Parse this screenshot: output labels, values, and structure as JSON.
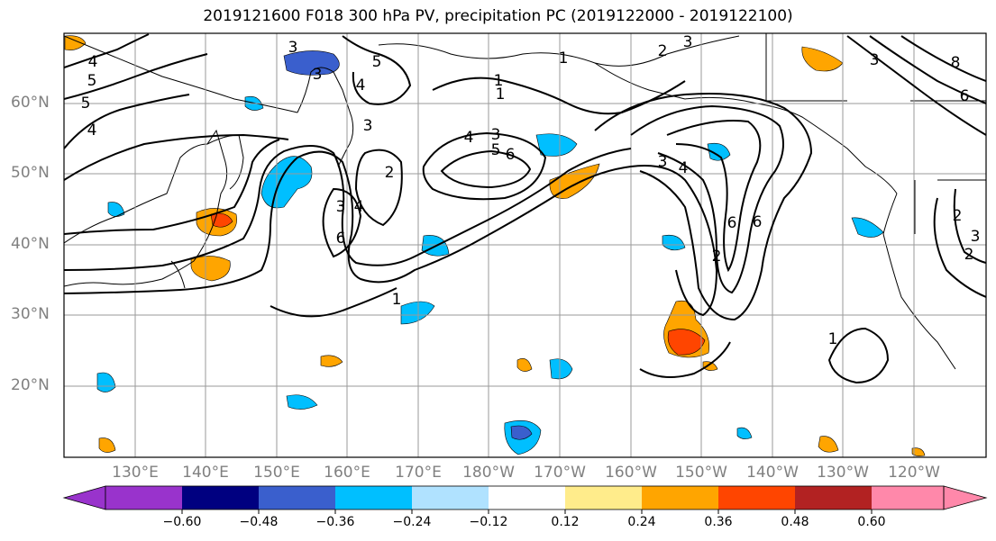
{
  "title": "2019121600 F018 300 hPa PV, precipitation PC (2019122000 - 2019122100)",
  "lat_labels": [
    "60°N",
    "50°N",
    "40°N",
    "30°N",
    "20°N"
  ],
  "lon_labels": [
    "130°E",
    "140°E",
    "150°E",
    "160°E",
    "170°E",
    "180°W",
    "170°W",
    "160°W",
    "150°W",
    "140°W",
    "130°W",
    "120°W"
  ],
  "colorbar": {
    "ticks": [
      "−0.60",
      "−0.48",
      "−0.36",
      "−0.24",
      "−0.12",
      "0.12",
      "0.24",
      "0.36",
      "0.48",
      "0.60"
    ],
    "colors": [
      "#9933cc",
      "#000080",
      "#3a5fcd",
      "#00bfff",
      "#b0e2ff",
      "#ffffff",
      "#ffec8b",
      "#ffa500",
      "#ff4500",
      "#b22222",
      "#ff88aa"
    ]
  },
  "contour_labels": [
    "3",
    "4",
    "5",
    "5",
    "4",
    "3",
    "1",
    "3",
    "2",
    "3",
    "1",
    "1",
    "8",
    "6",
    "3",
    "4",
    "5",
    "6",
    "3",
    "4",
    "3",
    "5",
    "6",
    "2",
    "4",
    "3",
    "6",
    "2",
    "4",
    "6",
    "1",
    "1",
    "2",
    "2",
    "3"
  ]
}
